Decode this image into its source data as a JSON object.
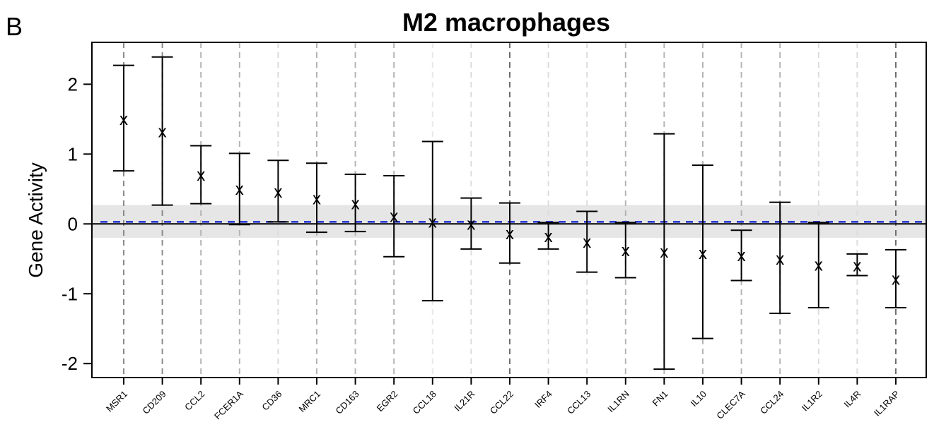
{
  "panel_label": "B",
  "chart_data": {
    "type": "scatter",
    "title": "M2 macrophages",
    "xlabel": "",
    "ylabel": "Gene Activity",
    "ylim": [
      -2.2,
      2.6
    ],
    "yticks": [
      -2,
      -1,
      0,
      1,
      2
    ],
    "ytick_labels": [
      "-2",
      "-1",
      "0",
      "1",
      "2"
    ],
    "grid": "vertical dashed lines per gene",
    "reference_line": 0,
    "band": [
      -0.2,
      0.27
    ],
    "band_color": "#e6e6e6",
    "dashed_line_value": 0.03,
    "dashed_line_color": "#1f2fd0",
    "marker": "x",
    "categories": [
      "MSR1",
      "CD209",
      "CCL2",
      "FCER1A",
      "CD36",
      "MRC1",
      "CD163",
      "EGR2",
      "CCL18",
      "IL21R",
      "CCL22",
      "IRF4",
      "CCL13",
      "IL1RN",
      "FN1",
      "IL10",
      "CLEC7A",
      "CCL24",
      "IL1R2",
      "IL4R",
      "IL1RAP"
    ],
    "values": [
      1.5,
      1.32,
      0.7,
      0.5,
      0.46,
      0.36,
      0.29,
      0.11,
      0.03,
      0.0,
      -0.14,
      -0.18,
      -0.26,
      -0.38,
      -0.4,
      -0.42,
      -0.45,
      -0.5,
      -0.59,
      -0.6,
      -0.79
    ],
    "lower": [
      0.76,
      0.27,
      0.29,
      -0.01,
      0.03,
      -0.12,
      -0.11,
      -0.47,
      -1.1,
      -0.36,
      -0.56,
      -0.36,
      -0.69,
      -0.77,
      -2.08,
      -1.64,
      -0.81,
      -1.28,
      -1.2,
      -0.74,
      -1.2
    ],
    "upper": [
      2.27,
      2.39,
      1.12,
      1.01,
      0.91,
      0.87,
      0.71,
      0.69,
      1.18,
      0.37,
      0.3,
      0.02,
      0.18,
      0.02,
      1.29,
      0.84,
      -0.09,
      0.31,
      0.02,
      -0.43,
      -0.37
    ],
    "gridline_colors": [
      "#8a8a8a",
      "#8a8a8a",
      "#b4b4b4",
      "#b4b4b4",
      "#dcdcdc",
      "#b4b4b4",
      "#b4b4b4",
      "#b4b4b4",
      "#e8e8e8",
      "#dcdcdc",
      "#6e6e6e",
      "#dcdcdc",
      "#dcdcdc",
      "#b4b4b4",
      "#b4b4b4",
      "#b4b4b4",
      "#b4b4b4",
      "#b4b4b4",
      "#dcdcdc",
      "#dcdcdc",
      "#6e6e6e"
    ]
  }
}
